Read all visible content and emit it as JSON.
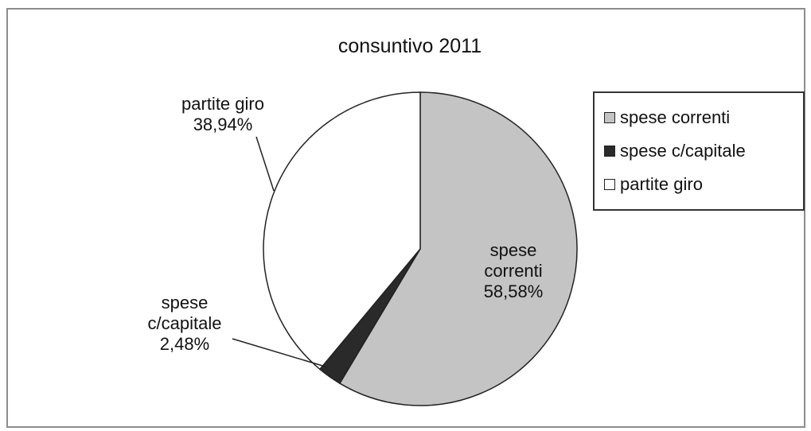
{
  "chart_data": {
    "type": "pie",
    "title": "consuntivo 2011",
    "slices": [
      {
        "name": "spese correnti",
        "value": 58.58,
        "label_line1": "spese",
        "label_line2": "correnti",
        "label_value": "58,58%",
        "color": "#c4c4c4"
      },
      {
        "name": "spese c/capitale",
        "value": 2.48,
        "label_line1": "spese",
        "label_line2": "c/capitale",
        "label_value": "2,48%",
        "color": "#2a2a2a"
      },
      {
        "name": "partite giro",
        "value": 38.94,
        "label_line1": "partite giro",
        "label_line2": "",
        "label_value": "38,94%",
        "color": "#ffffff"
      }
    ],
    "legend": {
      "placement": "right",
      "entries": [
        "spese correnti",
        "spese c/capitale",
        "partite giro"
      ]
    }
  }
}
